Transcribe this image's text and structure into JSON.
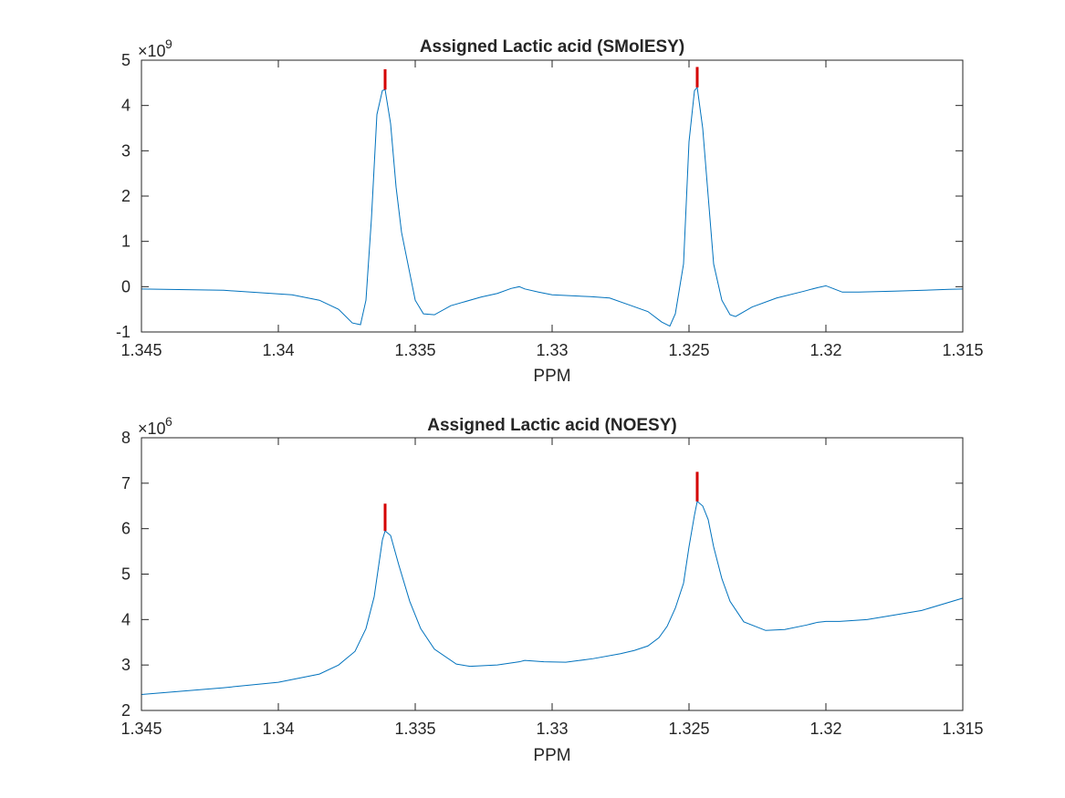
{
  "chart_data": [
    {
      "type": "line",
      "title": "Assigned Lactic acid (SMolESY)",
      "xlabel": "PPM",
      "ylabel": "",
      "x_reversed": true,
      "xlim": [
        1.315,
        1.345
      ],
      "ylim": [
        -1,
        5
      ],
      "y_exponent": "9",
      "x_ticks": [
        "1.345",
        "1.34",
        "1.335",
        "1.33",
        "1.325",
        "1.32",
        "1.315"
      ],
      "x_tick_values": [
        1.345,
        1.34,
        1.335,
        1.33,
        1.325,
        1.32,
        1.315
      ],
      "y_ticks": [
        "-1",
        "0",
        "1",
        "2",
        "3",
        "4",
        "5"
      ],
      "y_tick_values": [
        -1,
        0,
        1,
        2,
        3,
        4,
        5
      ],
      "grid": false,
      "series_color": "#0072bd",
      "marker_color": "#d40000",
      "x": [
        1.345,
        1.342,
        1.3395,
        1.3385,
        1.3378,
        1.3373,
        1.337,
        1.3368,
        1.3366,
        1.3364,
        1.3362,
        1.3361,
        1.3359,
        1.3357,
        1.3355,
        1.3352,
        1.335,
        1.3347,
        1.3343,
        1.3337,
        1.3326,
        1.332,
        1.3315,
        1.3312,
        1.331,
        1.3305,
        1.33,
        1.3286,
        1.3279,
        1.3272,
        1.3265,
        1.326,
        1.3257,
        1.3255,
        1.3252,
        1.325,
        1.3248,
        1.3247,
        1.3245,
        1.3243,
        1.3241,
        1.3238,
        1.3235,
        1.3233,
        1.3227,
        1.3218,
        1.3208,
        1.3203,
        1.32,
        1.3197,
        1.3194,
        1.3188,
        1.3175,
        1.3155,
        1.315
      ],
      "y": [
        -0.05,
        -0.08,
        -0.18,
        -0.3,
        -0.5,
        -0.8,
        -0.84,
        -0.3,
        1.5,
        3.8,
        4.33,
        4.35,
        3.6,
        2.2,
        1.2,
        0.3,
        -0.3,
        -0.6,
        -0.62,
        -0.42,
        -0.23,
        -0.15,
        -0.04,
        0.0,
        -0.05,
        -0.12,
        -0.18,
        -0.22,
        -0.25,
        -0.4,
        -0.55,
        -0.78,
        -0.87,
        -0.6,
        0.5,
        3.2,
        4.33,
        4.4,
        3.5,
        2.0,
        0.5,
        -0.3,
        -0.62,
        -0.66,
        -0.45,
        -0.25,
        -0.1,
        -0.02,
        0.02,
        -0.05,
        -0.12,
        -0.12,
        -0.1,
        -0.06,
        -0.05
      ],
      "markers": [
        {
          "x": 1.3361,
          "y_low": 4.35,
          "y_high": 4.8
        },
        {
          "x": 1.3247,
          "y_low": 4.4,
          "y_high": 4.85
        }
      ]
    },
    {
      "type": "line",
      "title": "Assigned Lactic acid (NOESY)",
      "xlabel": "PPM",
      "ylabel": "",
      "x_reversed": true,
      "xlim": [
        1.315,
        1.345
      ],
      "ylim": [
        2,
        8
      ],
      "y_exponent": "6",
      "x_ticks": [
        "1.345",
        "1.34",
        "1.335",
        "1.33",
        "1.325",
        "1.32",
        "1.315"
      ],
      "x_tick_values": [
        1.345,
        1.34,
        1.335,
        1.33,
        1.325,
        1.32,
        1.315
      ],
      "y_ticks": [
        "2",
        "3",
        "4",
        "5",
        "6",
        "7",
        "8"
      ],
      "y_tick_values": [
        2,
        3,
        4,
        5,
        6,
        7,
        8
      ],
      "grid": false,
      "series_color": "#0072bd",
      "marker_color": "#d40000",
      "x": [
        1.345,
        1.342,
        1.34,
        1.3385,
        1.3378,
        1.3372,
        1.3368,
        1.3365,
        1.3362,
        1.3361,
        1.3359,
        1.3356,
        1.3352,
        1.3348,
        1.3343,
        1.3335,
        1.333,
        1.332,
        1.3312,
        1.331,
        1.3303,
        1.3295,
        1.3285,
        1.3275,
        1.327,
        1.3265,
        1.3261,
        1.3258,
        1.3255,
        1.3252,
        1.325,
        1.3248,
        1.3247,
        1.3245,
        1.3243,
        1.3241,
        1.3238,
        1.3235,
        1.323,
        1.3222,
        1.3215,
        1.3207,
        1.3203,
        1.32,
        1.3195,
        1.3185,
        1.3165,
        1.315
      ],
      "y": [
        2.35,
        2.5,
        2.62,
        2.8,
        3.0,
        3.3,
        3.8,
        4.5,
        5.75,
        5.95,
        5.85,
        5.2,
        4.4,
        3.8,
        3.35,
        3.02,
        2.97,
        3.0,
        3.07,
        3.1,
        3.07,
        3.06,
        3.14,
        3.25,
        3.32,
        3.42,
        3.6,
        3.85,
        4.25,
        4.8,
        5.6,
        6.3,
        6.6,
        6.5,
        6.2,
        5.6,
        4.9,
        4.4,
        3.95,
        3.76,
        3.78,
        3.88,
        3.94,
        3.96,
        3.96,
        4.0,
        4.2,
        4.47
      ],
      "markers": [
        {
          "x": 1.3361,
          "y_low": 5.95,
          "y_high": 6.55
        },
        {
          "x": 1.3247,
          "y_low": 6.6,
          "y_high": 7.25
        }
      ]
    }
  ]
}
